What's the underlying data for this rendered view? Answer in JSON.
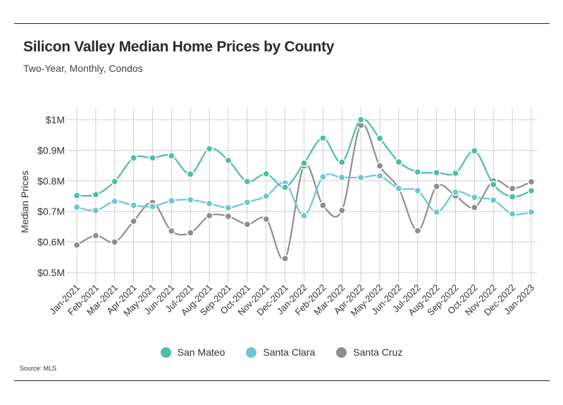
{
  "header": {
    "title": "Silicon Valley Median Home Prices by County",
    "subtitle": "Two-Year, Monthly, Condos"
  },
  "footer": {
    "source": "Source:  MLS"
  },
  "chart_data": {
    "type": "line",
    "title": "Silicon Valley Median Home Prices by County",
    "subtitle": "Two-Year, Monthly, Condos",
    "ylabel": "Median Prices",
    "xlabel": "",
    "ylim": [
      0.5,
      1.0
    ],
    "y_ticks": [
      0.5,
      0.6,
      0.7,
      0.8,
      0.9,
      1.0
    ],
    "y_tick_labels": [
      "$0.5M",
      "$0.6M",
      "$0.7M",
      "$0.8M",
      "$0.9M",
      "$1M"
    ],
    "grid": true,
    "legend_position": "bottom",
    "categories": [
      "Jan-2021",
      "Feb-2021",
      "Mar-2021",
      "Apr-2021",
      "May-2021",
      "Jun-2021",
      "Jul-2021",
      "Aug-2021",
      "Sep-2021",
      "Oct-2021",
      "Nov-2021",
      "Dec-2021",
      "Jan-2022",
      "Feb-2022",
      "Mar-2022",
      "Apr-2022",
      "May-2022",
      "Jun-2022",
      "Jul-2022",
      "Aug-2022",
      "Sep-2022",
      "Oct-2022",
      "Nov-2022",
      "Dec-2022",
      "Jan-2023"
    ],
    "series": [
      {
        "name": "San Mateo",
        "color": "#4cbfa6",
        "values": [
          0.752,
          0.755,
          0.798,
          0.875,
          0.875,
          0.882,
          0.822,
          0.905,
          0.867,
          0.798,
          0.823,
          0.779,
          0.858,
          0.94,
          0.861,
          1.0,
          0.939,
          0.862,
          0.829,
          0.827,
          0.825,
          0.898,
          0.788,
          0.748,
          0.768
        ]
      },
      {
        "name": "Santa Clara",
        "color": "#6cc7cf",
        "values": [
          0.714,
          0.703,
          0.733,
          0.72,
          0.716,
          0.735,
          0.738,
          0.726,
          0.712,
          0.73,
          0.75,
          0.793,
          0.686,
          0.813,
          0.811,
          0.811,
          0.816,
          0.775,
          0.768,
          0.698,
          0.763,
          0.746,
          0.737,
          0.692,
          0.698
        ]
      },
      {
        "name": "Santa Cruz",
        "color": "#8e8e8e",
        "values": [
          0.59,
          0.621,
          0.6,
          0.668,
          0.729,
          0.636,
          0.63,
          0.686,
          0.684,
          0.658,
          0.675,
          0.546,
          0.849,
          0.72,
          0.703,
          0.982,
          0.849,
          0.775,
          0.637,
          0.782,
          0.751,
          0.713,
          0.8,
          0.775,
          0.797
        ]
      }
    ]
  }
}
